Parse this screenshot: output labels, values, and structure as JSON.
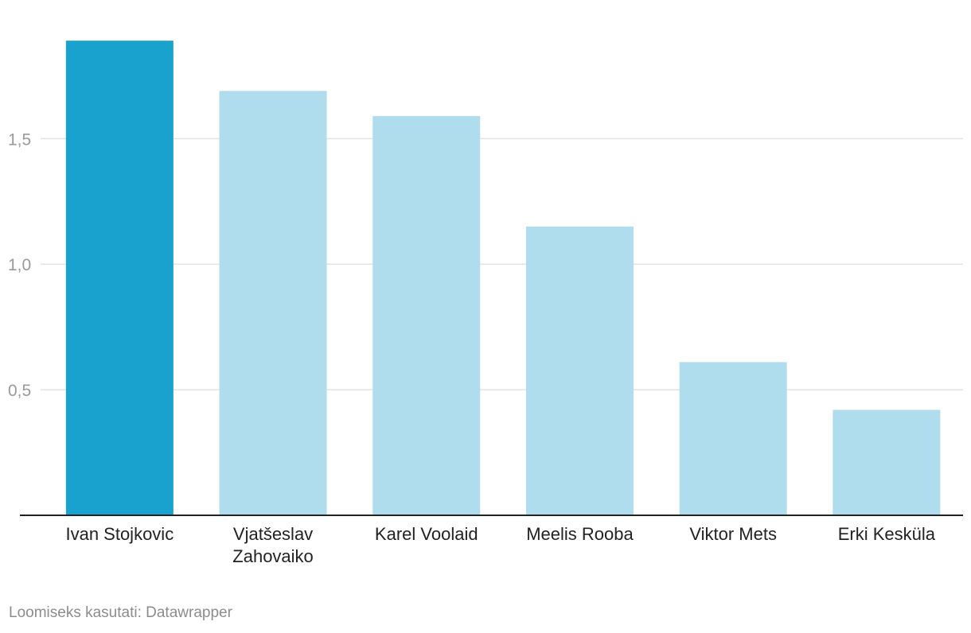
{
  "chart_data": {
    "type": "bar",
    "title": "",
    "xlabel": "",
    "ylabel": "",
    "categories": [
      [
        "Ivan Stojkovic"
      ],
      [
        "Vjatšeslav",
        "Zahovaiko"
      ],
      [
        "Karel Voolaid"
      ],
      [
        "Meelis Rooba"
      ],
      [
        "Viktor Mets"
      ],
      [
        "Erki Kesküla"
      ]
    ],
    "values": [
      1.89,
      1.69,
      1.59,
      1.15,
      0.61,
      0.42
    ],
    "highlight_index": 0,
    "ylim": [
      0,
      1.9
    ],
    "yticks": [
      0.5,
      1.0,
      1.5
    ],
    "ytick_labels": [
      "0,5",
      "1,0",
      "1,5"
    ],
    "grid": true,
    "colors": {
      "highlight": "#1aa2cf",
      "bar": "#afdded",
      "grid": "#e3e3e3",
      "axis": "#222222"
    }
  },
  "footer": {
    "credit": "Loomiseks kasutati: Datawrapper"
  }
}
